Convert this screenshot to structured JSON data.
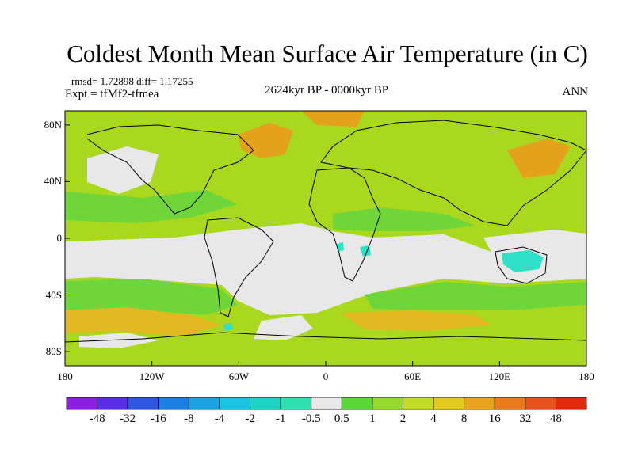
{
  "title": "Coldest Month Mean Surface Air Temperature (in C)",
  "stats": "rmsd= 1.72898  diff= 1.17255",
  "experiment": "Expt = tfMf2-tfmea",
  "period": "2624kyr BP - 0000kyr BP",
  "season": "ANN",
  "lat_ticks": [
    "80N",
    "40N",
    "0",
    "40S",
    "80S"
  ],
  "lon_ticks": [
    "180",
    "120W",
    "60W",
    "0",
    "60E",
    "120E",
    "180"
  ],
  "colorbar": {
    "labels": [
      "-48",
      "-32",
      "-16",
      "-8",
      "-4",
      "-2",
      "-1",
      "-0.5",
      "0.5",
      "1",
      "2",
      "4",
      "8",
      "16",
      "32",
      "48"
    ],
    "colors": [
      "#8c1fe0",
      "#5a2ee6",
      "#2f55e3",
      "#1e7fe3",
      "#1aa3e3",
      "#19c3df",
      "#1dd3c1",
      "#2fe0b0",
      "#e8e8e8",
      "#5ad636",
      "#94d92b",
      "#c2dc24",
      "#e3c81e",
      "#e8a31c",
      "#e87a1a",
      "#e8521a",
      "#e22a0f"
    ]
  }
}
